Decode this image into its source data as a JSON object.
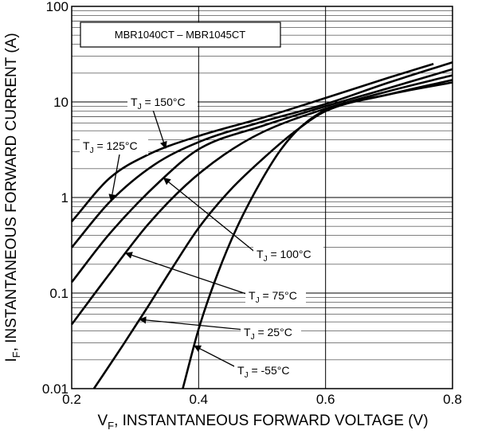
{
  "chart_data": {
    "type": "line",
    "title": "MBR1040CT – MBR1045CT",
    "xlabel": {
      "main": "V",
      "sub": "F",
      "rest": ", INSTANTANEOUS FORWARD VOLTAGE (V)"
    },
    "ylabel": {
      "main": "I",
      "sub": "F",
      "rest": ", INSTANTANEOUS FORWARD CURRENT (A)"
    },
    "xlim": [
      0.2,
      0.8
    ],
    "ylim": [
      0.01,
      100
    ],
    "yscale": "log",
    "x_ticks": [
      "0.2",
      "0.4",
      "0.6",
      "0.8"
    ],
    "y_ticks": [
      "0.01",
      "0.1",
      "1",
      "10",
      "100"
    ],
    "grid": true,
    "series": [
      {
        "name": "TJ = 150°C",
        "label_main": "T",
        "label_sub": "J",
        "label_value": " = 150°C",
        "x": [
          0.2,
          0.26,
          0.32,
          0.4,
          0.5,
          0.6,
          0.7,
          0.77
        ],
        "y": [
          0.56,
          1.6,
          2.8,
          4.4,
          6.8,
          11,
          18,
          25
        ]
      },
      {
        "name": "TJ = 125°C",
        "label_main": "T",
        "label_sub": "J",
        "label_value": " = 125°C",
        "x": [
          0.2,
          0.26,
          0.33,
          0.4,
          0.5,
          0.6,
          0.7,
          0.8
        ],
        "y": [
          0.3,
          0.9,
          2.2,
          3.8,
          6.2,
          9.5,
          16,
          26
        ]
      },
      {
        "name": "TJ = 100°C",
        "label_main": "T",
        "label_sub": "J",
        "label_value": " = 100°C",
        "x": [
          0.2,
          0.26,
          0.34,
          0.4,
          0.5,
          0.6,
          0.7,
          0.8
        ],
        "y": [
          0.13,
          0.42,
          1.5,
          3.2,
          5.6,
          9,
          14,
          22
        ]
      },
      {
        "name": "TJ = 75°C",
        "label_main": "T",
        "label_sub": "J",
        "label_value": " = 75°C",
        "x": [
          0.2,
          0.26,
          0.32,
          0.38,
          0.44,
          0.5,
          0.6,
          0.7,
          0.8
        ],
        "y": [
          0.047,
          0.16,
          0.52,
          1.35,
          2.8,
          4.8,
          8.5,
          13,
          19
        ]
      },
      {
        "name": "TJ = 25°C",
        "label_main": "T",
        "label_sub": "J",
        "label_value": " = 25°C",
        "x": [
          0.235,
          0.28,
          0.32,
          0.36,
          0.4,
          0.45,
          0.5,
          0.55,
          0.6,
          0.7,
          0.8
        ],
        "y": [
          0.01,
          0.028,
          0.072,
          0.19,
          0.48,
          1.2,
          2.5,
          4.8,
          8,
          12,
          17
        ]
      },
      {
        "name": "TJ = -55°C",
        "label_main": "T",
        "label_sub": "J",
        "label_value": " = -55°C",
        "x": [
          0.375,
          0.4,
          0.43,
          0.46,
          0.5,
          0.53,
          0.56,
          0.6,
          0.7,
          0.8
        ],
        "y": [
          0.01,
          0.042,
          0.16,
          0.48,
          1.55,
          3.2,
          5.4,
          8.2,
          12,
          16
        ]
      }
    ]
  }
}
